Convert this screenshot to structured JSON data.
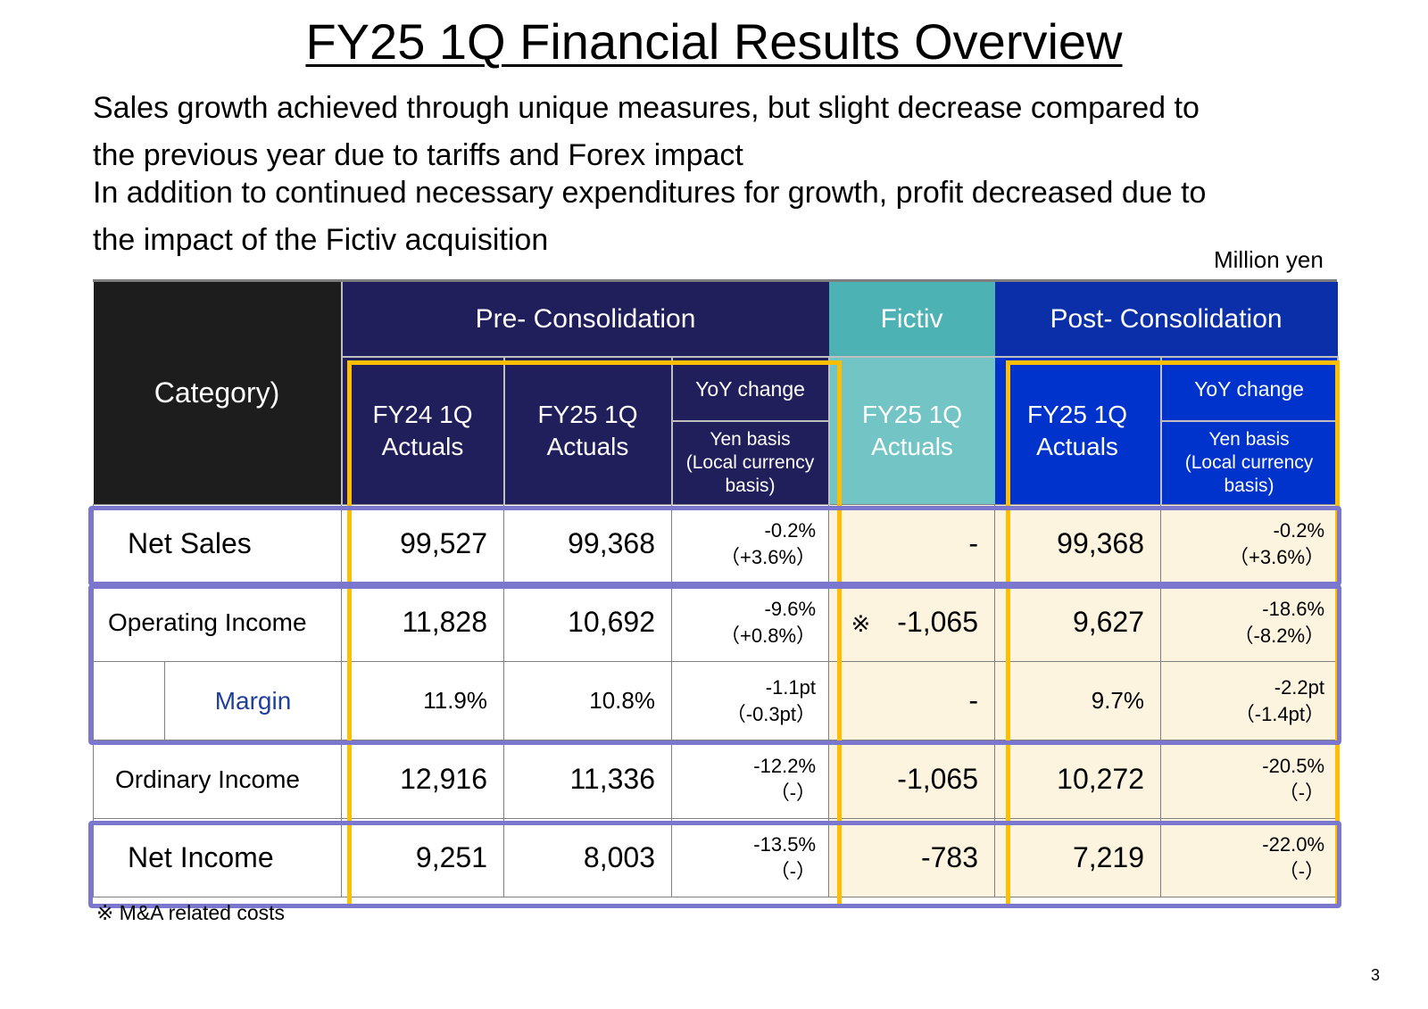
{
  "title": "FY25 1Q Financial Results Overview",
  "subtitle_lines": [
    "Sales growth achieved through unique measures, but slight decrease compared to",
    "the previous year due to tariffs and Forex impact",
    "In addition to continued necessary expenditures for growth, profit decreased due to",
    "the impact of the Fictiv acquisition"
  ],
  "unit": "Million yen",
  "table": {
    "headers": {
      "category": "Category)",
      "pre_consolidation": "Pre- Consolidation",
      "fictiv": "Fictiv",
      "post_consolidation": "Post- Consolidation",
      "fy24_line1": "FY24 1Q",
      "fy25_line1": "FY25 1Q",
      "actuals": "Actuals",
      "yoy_change": "YoY change",
      "yen_basis": "Yen basis",
      "local_basis_1": "(Local currency",
      "local_basis_2": "basis)"
    },
    "rows": {
      "net_sales": {
        "label": "Net Sales",
        "fy24": "99,527",
        "fy25": "99,368",
        "yoy": "-0.2%",
        "yoy_local": "（+3.6%）",
        "fictiv": "-",
        "post": "99,368",
        "post_yoy": "-0.2%",
        "post_yoy_local": "（+3.6%）"
      },
      "operating_income": {
        "label": "Operating Income",
        "fy24": "11,828",
        "fy25": "10,692",
        "yoy": "-9.6%",
        "yoy_local": "（+0.8%）",
        "fictiv_mark": "※",
        "fictiv": "-1,065",
        "post": "9,627",
        "post_yoy": "-18.6%",
        "post_yoy_local": "（-8.2%）"
      },
      "margin": {
        "label": "Margin",
        "fy24": "11.9%",
        "fy25": "10.8%",
        "yoy": "-1.1pt",
        "yoy_local": "（-0.3pt）",
        "fictiv": "-",
        "post": "9.7%",
        "post_yoy": "-2.2pt",
        "post_yoy_local": "（-1.4pt）"
      },
      "ordinary_income": {
        "label": "Ordinary Income",
        "fy24": "12,916",
        "fy25": "11,336",
        "yoy": "-12.2%",
        "yoy_local": "（-）",
        "fictiv": "-1,065",
        "post": "10,272",
        "post_yoy": "-20.5%",
        "post_yoy_local": "（-）"
      },
      "net_income": {
        "label": "Net Income",
        "fy24": "9,251",
        "fy25": "8,003",
        "yoy": "-13.5%",
        "yoy_local": "（-）",
        "fictiv": "-783",
        "post": "7,219",
        "post_yoy": "-22.0%",
        "post_yoy_local": "（-）"
      }
    }
  },
  "footnote": "※ M&A related costs",
  "page_number": "3",
  "colors": {
    "category_header": "#1d1d1d",
    "pre_header": "#201f5b",
    "fictiv_header": "#4db2b4",
    "post_header": "#0a2fa8",
    "highlight_orange": "#ffbf00",
    "highlight_purple": "#7b77cf",
    "cream_cell": "#fdf4df"
  }
}
